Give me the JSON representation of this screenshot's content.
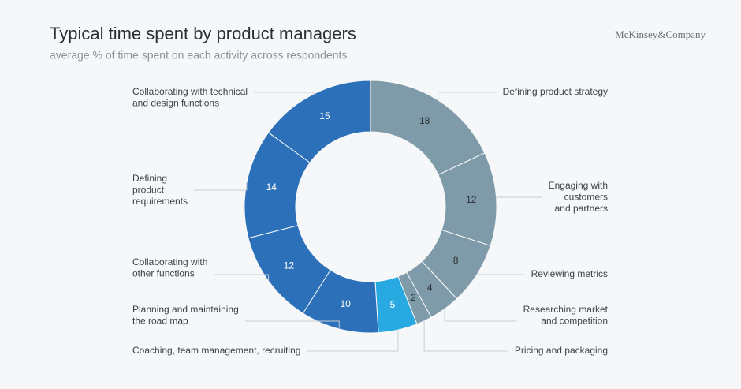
{
  "chart_data": {
    "type": "donut",
    "title": "Typical time spent by product managers",
    "subtitle": "average % of time spent on each activity across respondents",
    "brand": "McKinsey&Company",
    "categories": [
      [
        "Defining product strategy"
      ],
      [
        "Engaging with",
        "customers",
        "and partners"
      ],
      [
        "Reviewing metrics"
      ],
      [
        "Researching market",
        "and competition"
      ],
      [
        "Pricing and packaging"
      ],
      [
        "Coaching, team management, recruiting"
      ],
      [
        "Planning and maintaining",
        "the road map"
      ],
      [
        "Collaborating with",
        "other functions"
      ],
      [
        "Defining",
        "product",
        "requirements"
      ],
      [
        "Collaborating with technical",
        "and design functions"
      ]
    ],
    "values": [
      18,
      12,
      8,
      4,
      2,
      5,
      10,
      12,
      14,
      15
    ],
    "colors": [
      "#7f9ba9",
      "#7f9ba9",
      "#7f9ba9",
      "#7f9ba9",
      "#7f9ba9",
      "#29a9e1",
      "#2b70b9",
      "#2b70b9",
      "#2b70b9",
      "#2b70b9"
    ]
  }
}
